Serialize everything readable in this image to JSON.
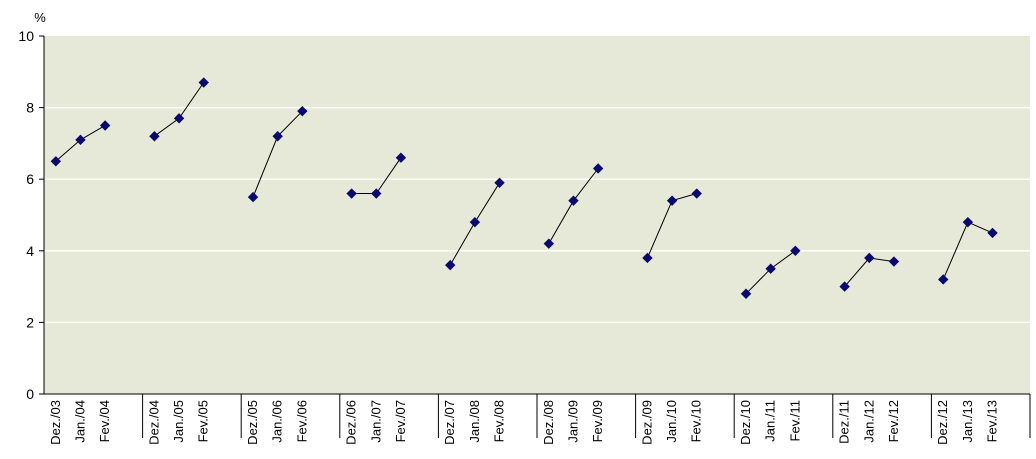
{
  "chart_data": {
    "type": "line",
    "title": "",
    "xlabel": "",
    "ylabel": "%",
    "ylim": [
      0,
      10
    ],
    "yticks": [
      0,
      2,
      4,
      6,
      8,
      10
    ],
    "grid": true,
    "colors": {
      "plot_background": "#e6e8d8",
      "gridline": "#ffffff",
      "marker": "#0a0a6e",
      "line": "#000000"
    },
    "groups": [
      {
        "categories": [
          "Dez./03",
          "Jan./04",
          "Fev./04"
        ],
        "values": [
          6.5,
          7.1,
          7.5
        ]
      },
      {
        "categories": [
          "Dez./04",
          "Jan./05",
          "Fev./05"
        ],
        "values": [
          7.2,
          7.7,
          8.7
        ]
      },
      {
        "categories": [
          "Dez./05",
          "Jan./06",
          "Fev./06"
        ],
        "values": [
          5.5,
          7.2,
          7.9
        ]
      },
      {
        "categories": [
          "Dez./06",
          "Jan./07",
          "Fev./07"
        ],
        "values": [
          5.6,
          5.6,
          6.6
        ]
      },
      {
        "categories": [
          "Dez./07",
          "Jan./08",
          "Fev./08"
        ],
        "values": [
          3.6,
          4.8,
          5.9
        ]
      },
      {
        "categories": [
          "Dez./08",
          "Jan./09",
          "Fev./09"
        ],
        "values": [
          4.2,
          5.4,
          6.3
        ]
      },
      {
        "categories": [
          "Dez./09",
          "Jan./10",
          "Fev./10"
        ],
        "values": [
          3.8,
          5.4,
          5.6
        ]
      },
      {
        "categories": [
          "Dez./10",
          "Jan./11",
          "Fev./11"
        ],
        "values": [
          2.8,
          3.5,
          4.0
        ]
      },
      {
        "categories": [
          "Dez./11",
          "Jan./12",
          "Fev./12"
        ],
        "values": [
          3.0,
          3.8,
          3.7
        ]
      },
      {
        "categories": [
          "Dez./12",
          "Jan./13",
          "Fev./13"
        ],
        "values": [
          3.2,
          4.8,
          4.5
        ]
      }
    ]
  }
}
